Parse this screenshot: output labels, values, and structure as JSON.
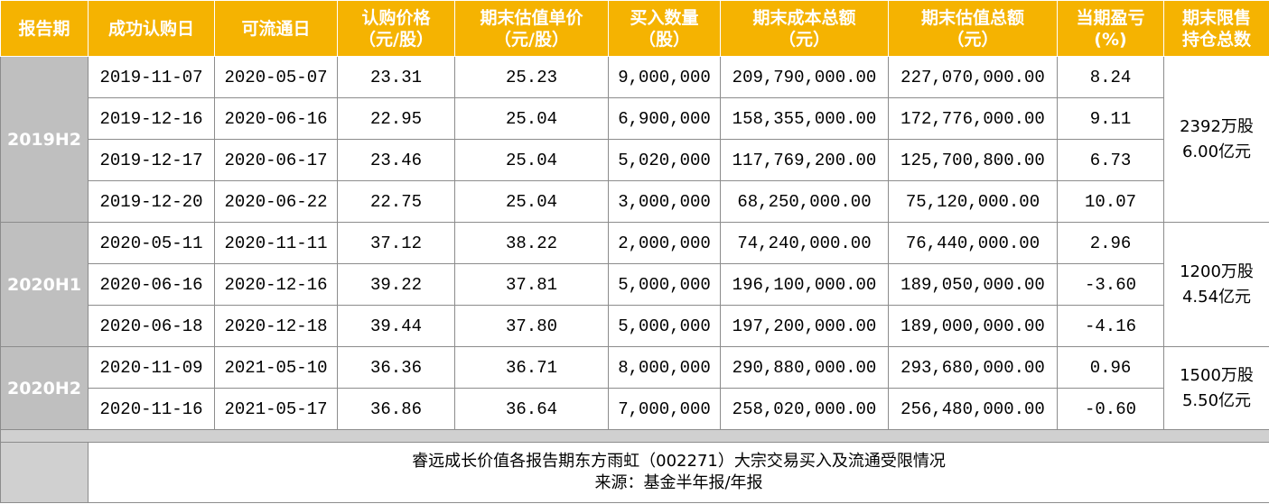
{
  "table": {
    "header": [
      [
        "报告期"
      ],
      [
        "成功认购日"
      ],
      [
        "可流通日"
      ],
      [
        "认购价格",
        "（元/股）"
      ],
      [
        "期末估值单价",
        "（元/股）"
      ],
      [
        "买入数量",
        "（股）"
      ],
      [
        "期末成本总额",
        "（元）"
      ],
      [
        "期末估值总额",
        "（元）"
      ],
      [
        "当期盈亏",
        "(%)"
      ],
      [
        "期末限售",
        "持仓总数"
      ]
    ],
    "groups": [
      {
        "period": "2019H2",
        "total": [
          "2392万股",
          "6.00亿元"
        ],
        "rows": [
          [
            "2019-11-07",
            "2020-05-07",
            "23.31",
            "25.23",
            "9,000,000",
            "209,790,000.00",
            "227,070,000.00",
            "8.24"
          ],
          [
            "2019-12-16",
            "2020-06-16",
            "22.95",
            "25.04",
            "6,900,000",
            "158,355,000.00",
            "172,776,000.00",
            "9.11"
          ],
          [
            "2019-12-17",
            "2020-06-17",
            "23.46",
            "25.04",
            "5,020,000",
            "117,769,200.00",
            "125,700,800.00",
            "6.73"
          ],
          [
            "2019-12-20",
            "2020-06-22",
            "22.75",
            "25.04",
            "3,000,000",
            "68,250,000.00",
            "75,120,000.00",
            "10.07"
          ]
        ]
      },
      {
        "period": "2020H1",
        "total": [
          "1200万股",
          "4.54亿元"
        ],
        "rows": [
          [
            "2020-05-11",
            "2020-11-11",
            "37.12",
            "38.22",
            "2,000,000",
            "74,240,000.00",
            "76,440,000.00",
            "2.96"
          ],
          [
            "2020-06-16",
            "2020-12-16",
            "39.22",
            "37.81",
            "5,000,000",
            "196,100,000.00",
            "189,050,000.00",
            "-3.60"
          ],
          [
            "2020-06-18",
            "2020-12-18",
            "39.44",
            "37.80",
            "5,000,000",
            "197,200,000.00",
            "189,000,000.00",
            "-4.16"
          ]
        ]
      },
      {
        "period": "2020H2",
        "total": [
          "1500万股",
          "5.50亿元"
        ],
        "rows": [
          [
            "2020-11-09",
            "2021-05-10",
            "36.36",
            "36.71",
            "8,000,000",
            "290,880,000.00",
            "293,680,000.00",
            "0.96"
          ],
          [
            "2020-11-16",
            "2021-05-17",
            "36.86",
            "36.64",
            "7,000,000",
            "258,020,000.00",
            "256,480,000.00",
            "-0.60"
          ]
        ]
      }
    ]
  },
  "footer": {
    "caption": "睿远成长价值各报告期东方雨虹（002271）大宗交易买入及流通受限情况",
    "source": "来源：基金半年报/年报"
  }
}
